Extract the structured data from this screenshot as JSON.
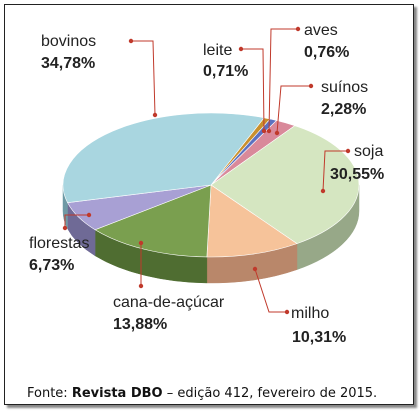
{
  "chart_data": {
    "type": "pie",
    "slices": [
      {
        "name": "leite",
        "value_label": "0,71%",
        "value": 0.71,
        "color": "#c9902d",
        "side": "#8d6420"
      },
      {
        "name": "aves",
        "value_label": "0,76%",
        "value": 0.76,
        "color": "#5b71c0",
        "side": "#3e4f87"
      },
      {
        "name": "suínos",
        "value_label": "2,28%",
        "value": 2.28,
        "color": "#d9899a",
        "side": "#9b5e6b"
      },
      {
        "name": "soja",
        "value_label": "30,55%",
        "value": 30.55,
        "color": "#d5e6c1",
        "side": "#97a888"
      },
      {
        "name": "milho",
        "value_label": "10,31%",
        "value": 10.31,
        "color": "#f6c39a",
        "side": "#b9876a"
      },
      {
        "name": "cana-de-açúcar",
        "value_label": "13,88%",
        "value": 13.88,
        "color": "#7a9f4f",
        "side": "#4f6d31"
      },
      {
        "name": "florestas",
        "value_label": "6,73%",
        "value": 6.73,
        "color": "#a8a0d4",
        "side": "#6f6a96"
      },
      {
        "name": "bovinos",
        "value_label": "34,78%",
        "value": 34.78,
        "color": "#a9d6e0",
        "side": "#6f9aa5"
      }
    ],
    "leader_color": "#c0392b"
  },
  "source": {
    "prefix": "Fonte: ",
    "publication": "Revista DBO",
    "suffix": " – edição 412, fevereiro de 2015."
  }
}
